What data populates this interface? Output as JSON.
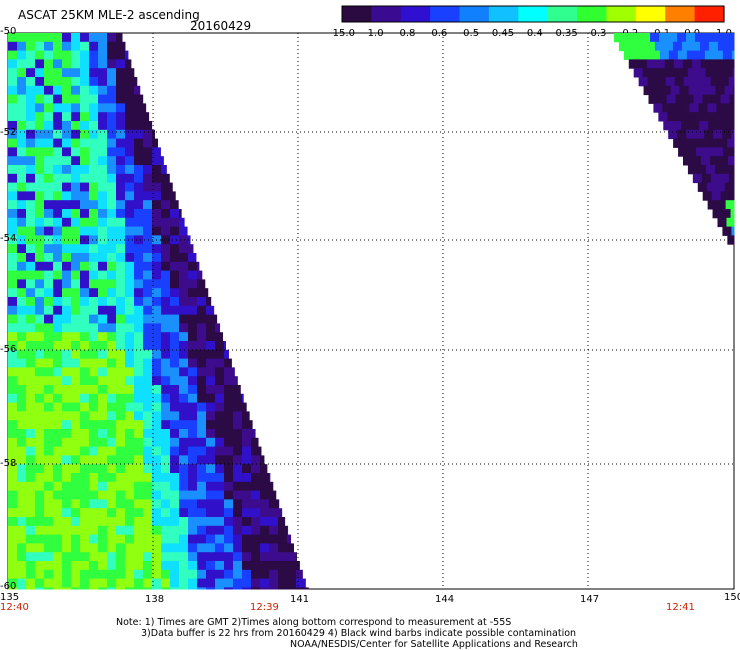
{
  "header": {
    "title": "ASCAT 25KM MLE-2 ascending",
    "date": "20160429"
  },
  "colorbar": {
    "labels": [
      "-15.0",
      "-1.0",
      "-0.8",
      "-0.6",
      "-0.5",
      "-0.45",
      "-0.4",
      "-0.35",
      "-0.3",
      "-0.2",
      "-0.1",
      "0.0",
      "1.0"
    ],
    "colors": [
      "#2a0a40",
      "#3a0a90",
      "#2f10d0",
      "#1a40ff",
      "#1080ff",
      "#10c0ff",
      "#00ffff",
      "#30ff90",
      "#30ff30",
      "#a0ff00",
      "#ffff00",
      "#ff8000",
      "#ff2000"
    ]
  },
  "map": {
    "lon_range": [
      135,
      150
    ],
    "lat_range": [
      -50,
      -60
    ],
    "lon_ticks": [
      "135",
      "138",
      "141",
      "144",
      "147",
      "150"
    ],
    "lat_ticks": [
      "-50",
      "-52",
      "-54",
      "-56",
      "-58",
      "-60"
    ],
    "times": [
      "12:40",
      "12:39",
      "12:41"
    ],
    "grid": "dotted"
  },
  "notes": {
    "line1": "Note: 1) Times are GMT 2)Times along bottom correspond to measurement at -55S",
    "line2": "3)Data buffer is 22 hrs from 20160429 4) Black wind barbs indicate possible contamination",
    "line3": "NOAA/NESDIS/Center for Satellite Applications and Research"
  }
}
